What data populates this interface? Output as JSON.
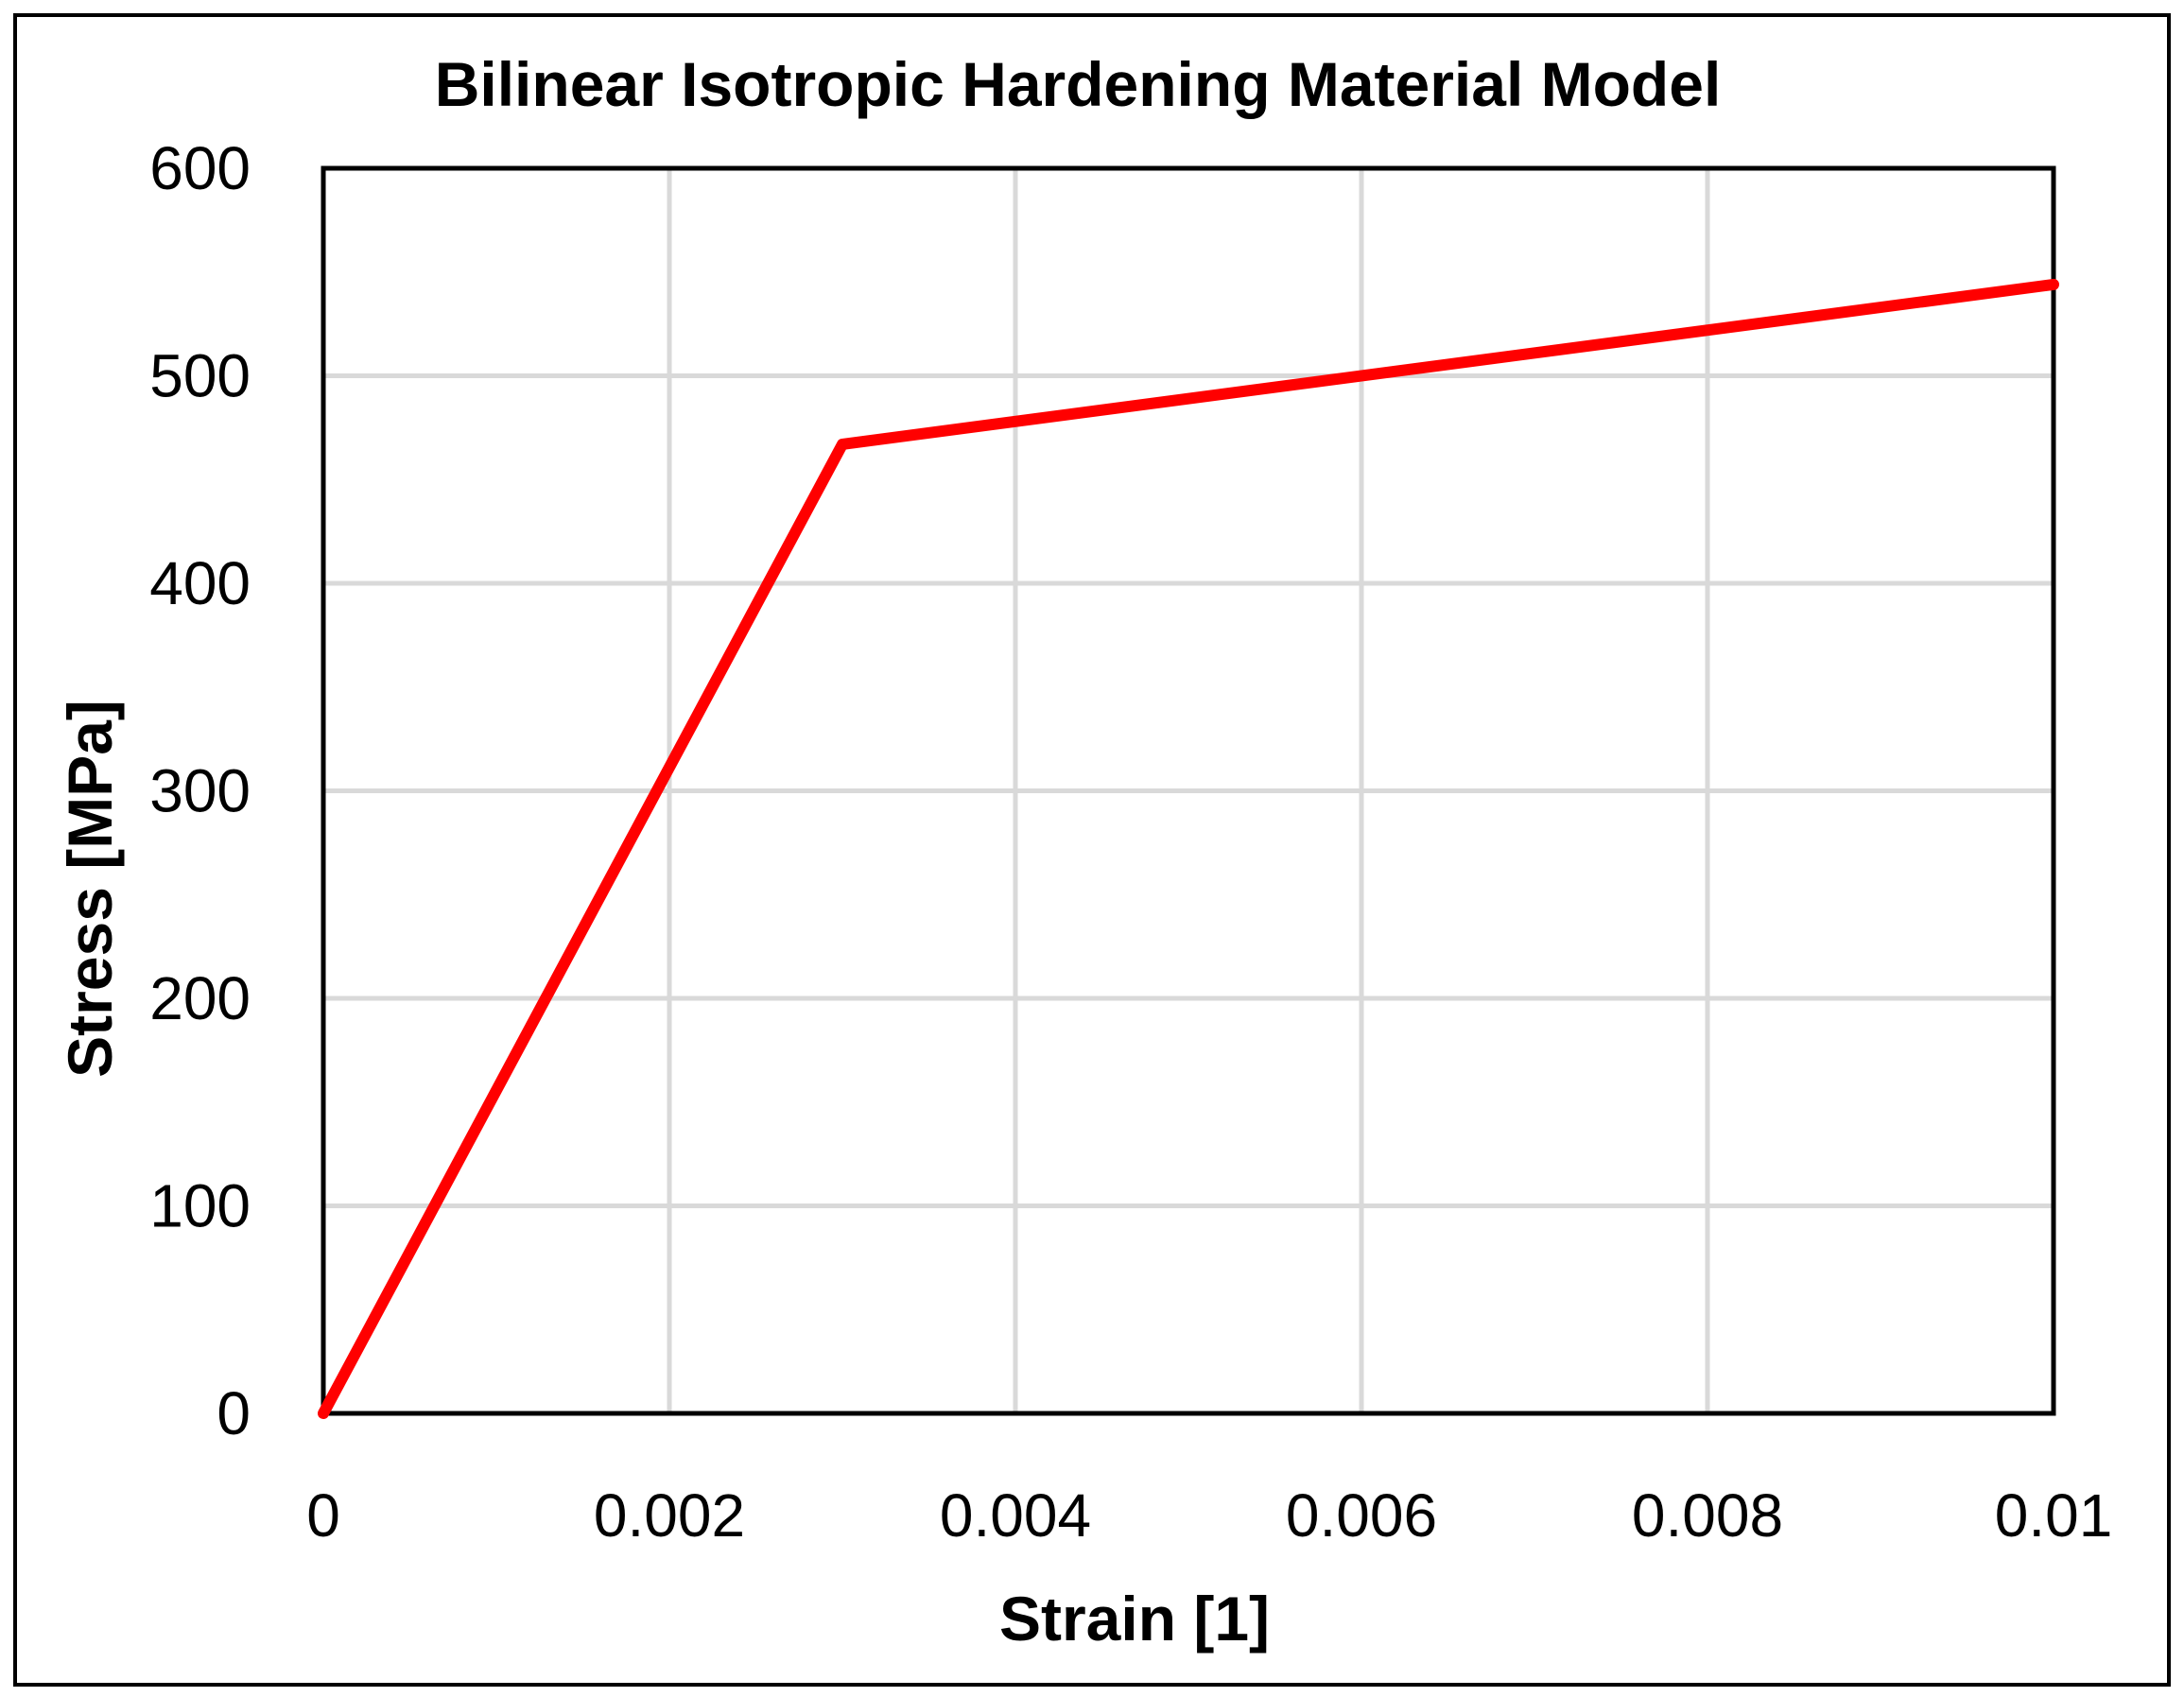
{
  "chart_data": {
    "type": "line",
    "title": "Bilinear Isotropic Hardening Material Model",
    "xlabel": "Strain [1]",
    "ylabel": "Stress [MPa]",
    "xlim": [
      0,
      0.01
    ],
    "ylim": [
      0,
      600
    ],
    "xticks": [
      0,
      0.002,
      0.004,
      0.006,
      0.008,
      0.01
    ],
    "yticks": [
      0,
      100,
      200,
      300,
      400,
      500,
      600
    ],
    "xtick_labels": [
      "0",
      "0.002",
      "0.004",
      "0.006",
      "0.008",
      "0.01"
    ],
    "ytick_labels": [
      "0",
      "100",
      "200",
      "300",
      "400",
      "500",
      "600"
    ],
    "grid": true,
    "legend": "none",
    "series": [
      {
        "color": "#ff0000",
        "x": [
          0,
          0.003,
          0.01
        ],
        "y": [
          0,
          467,
          544
        ]
      }
    ]
  }
}
